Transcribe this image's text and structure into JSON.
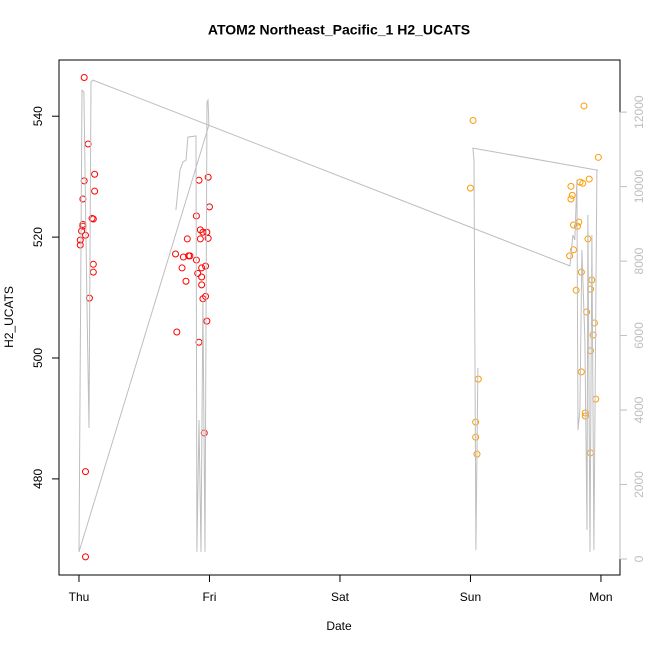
{
  "chart_data": {
    "type": "scatter",
    "title": "ATOM2 Northeast_Pacific_1 H2_UCATS",
    "x_label": "Date",
    "y_label": "H2_UCATS",
    "xlim": [
      -0.153,
      4.146
    ],
    "ylim": [
      464.1,
      549.3
    ],
    "y2lim": [
      -430,
      13400
    ],
    "xticks": [
      {
        "value": 0,
        "label": "Thu"
      },
      {
        "value": 1,
        "label": "Fri"
      },
      {
        "value": 2,
        "label": "Sat"
      },
      {
        "value": 3,
        "label": "Sun"
      },
      {
        "value": 4,
        "label": "Mon"
      }
    ],
    "yticks": [
      480,
      500,
      520,
      540
    ],
    "y2ticks": [
      0,
      2000,
      4000,
      6000,
      8000,
      10000,
      12000
    ],
    "y2color": "#bebebe",
    "series": [
      {
        "mode": "points",
        "color": "#ff0000",
        "x": [
          0.04,
          0.01,
          0.01,
          0.02,
          0.03,
          0.03,
          0.03,
          0.04,
          0.05,
          0.07,
          0.1,
          0.11,
          0.12,
          0.12,
          0.11,
          0.11,
          0.08,
          0.05,
          0.05,
          0.75,
          0.74,
          0.79,
          0.8,
          0.82,
          0.83,
          0.84,
          0.85,
          0.9,
          0.9,
          0.91,
          0.92,
          0.92,
          0.93,
          0.93,
          0.94,
          0.94,
          0.94,
          0.95,
          0.95,
          0.96,
          0.97,
          0.97,
          0.98,
          0.98,
          0.99,
          0.99,
          1.0
        ],
        "values": [
          546.4,
          519.5,
          518.7,
          521,
          522.1,
          521.8,
          526.3,
          529.3,
          520.3,
          535.4,
          523.1,
          523,
          530.4,
          527.6,
          515.5,
          514.2,
          509.9,
          481.2,
          467.1,
          504.3,
          517.2,
          514.9,
          516.7,
          512.7,
          519.7,
          516.9,
          516.9,
          516.2,
          523.5,
          514.0,
          529.4,
          502.6,
          521.2,
          519.7,
          513.4,
          512.1,
          514.9,
          509.8,
          520.8,
          487.6,
          510.2,
          515.2,
          506.1,
          520.8,
          529.9,
          519.8,
          525
        ]
      },
      {
        "mode": "points",
        "color": "#ff9900",
        "x": [
          3.02,
          3.0,
          3.04,
          3.06,
          3.04,
          3.05,
          3.76,
          3.77,
          3.78,
          3.77,
          3.79,
          3.79,
          3.81,
          3.82,
          3.83,
          3.84,
          3.85,
          3.85,
          3.86,
          3.87,
          3.88,
          3.88,
          3.89,
          3.9,
          3.91,
          3.92,
          3.92,
          3.92,
          3.93,
          3.94,
          3.95,
          3.96,
          3.98
        ],
        "values": [
          539.3,
          528.1,
          489.4,
          496.5,
          486.9,
          484.1,
          516.9,
          526.3,
          526.9,
          528.4,
          517.9,
          522,
          511.2,
          521.8,
          522.5,
          529.1,
          514.2,
          497.7,
          528.9,
          541.7,
          490.4,
          490.9,
          507.6,
          519.7,
          529.6,
          511.4,
          484.3,
          501.2,
          512.9,
          503.8,
          505.8,
          493.2,
          533.2
        ]
      },
      {
        "mode": "line",
        "color": "#bebebe",
        "axis": "y2",
        "x": [
          0.743,
          0.774,
          0.797,
          0.82,
          0.835,
          0.897,
          0.904,
          0.92,
          0.935,
          0.95,
          0.966,
          0.981,
          0.989,
          0.996,
          0,
          0.023,
          0.038,
          0.061,
          0.077,
          0.092,
          0.107,
          3.762,
          3.785,
          3.8,
          3.816,
          3.824,
          3.839,
          3.854,
          3.877,
          3.893,
          3.9,
          3.916,
          3.931,
          3.946,
          3.969,
          3.977,
          3.019,
          3.027,
          3.042,
          3.057
        ],
        "values": [
          9370,
          10445,
          10660,
          10710,
          11330,
          11360,
          190,
          3730,
          190,
          6950,
          190,
          12270,
          12320,
          11650,
          190,
          12590,
          12540,
          6950,
          3520,
          12810,
          12860,
          7870,
          8700,
          8565,
          10180,
          3460,
          4000,
          8300,
          5880,
          780,
          9240,
          190,
          8700,
          240,
          10440,
          10440,
          11035,
          10710,
          240,
          5130
        ]
      }
    ]
  }
}
